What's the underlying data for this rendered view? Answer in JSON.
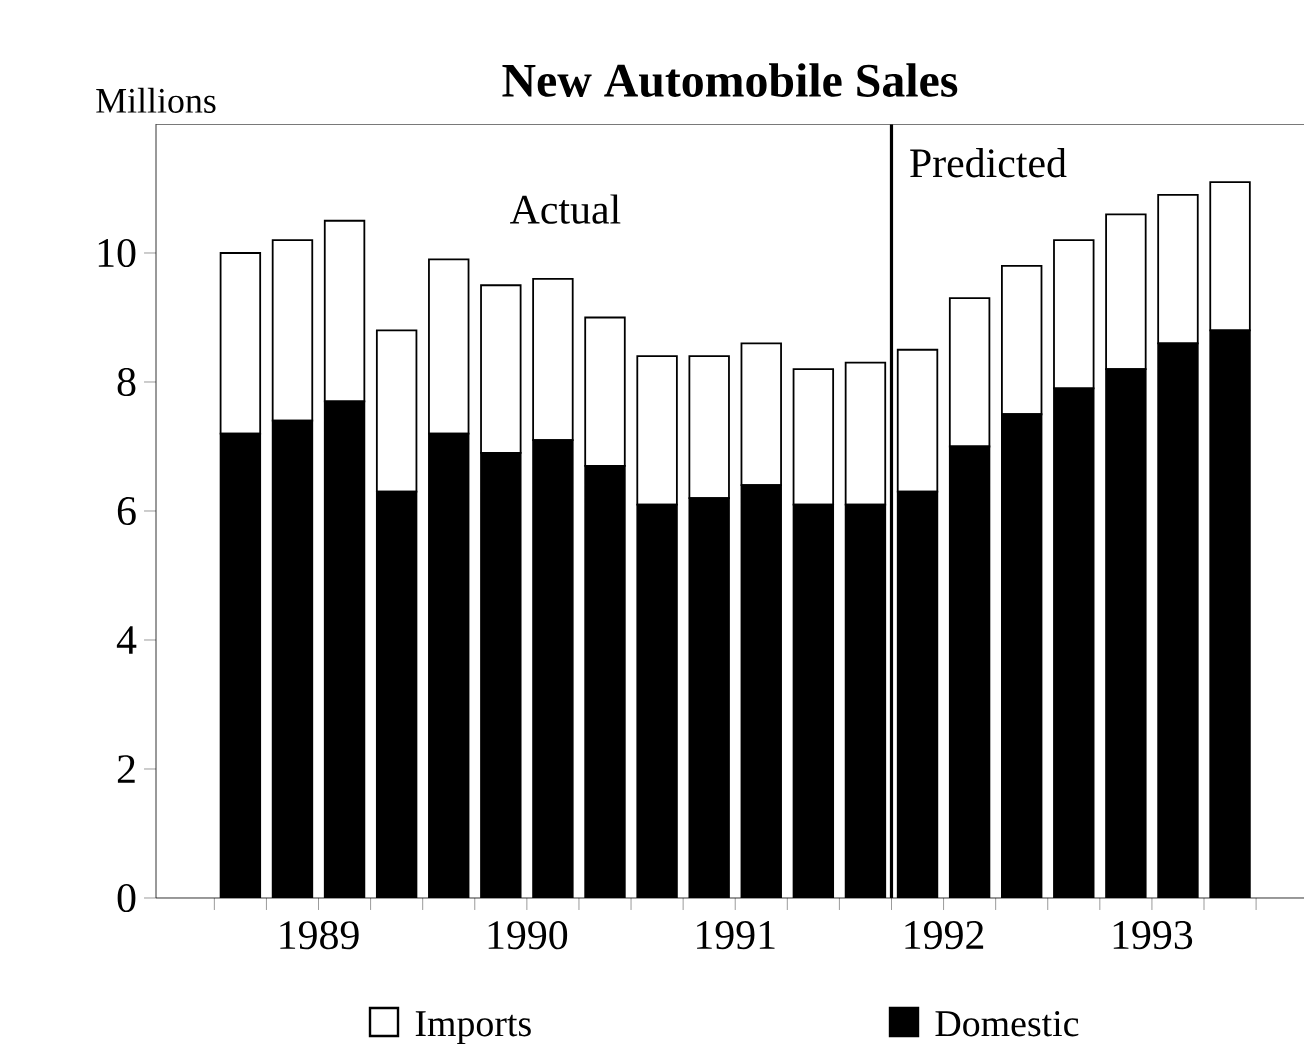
{
  "chart_data": {
    "type": "bar",
    "title": "New Automobile Sales",
    "ylabel": "Millions",
    "stacked": true,
    "x": [
      1989.125,
      1989.375,
      1989.625,
      1989.875,
      1990.125,
      1990.375,
      1990.625,
      1990.875,
      1991.125,
      1991.375,
      1991.625,
      1991.875,
      1992.125,
      1992.375,
      1992.625,
      1992.875,
      1993.125,
      1993.375,
      1993.625,
      1993.875
    ],
    "series": [
      {
        "name": "Domestic",
        "color": "#000000",
        "values": [
          7.2,
          7.4,
          7.7,
          6.3,
          7.2,
          6.9,
          7.1,
          6.7,
          6.1,
          6.2,
          6.4,
          6.1,
          6.1,
          6.3,
          7.0,
          7.5,
          7.9,
          8.2,
          8.6,
          8.8
        ]
      },
      {
        "name": "Imports",
        "color": "#ffffff",
        "values": [
          2.8,
          2.8,
          2.8,
          2.5,
          2.7,
          2.6,
          2.5,
          2.3,
          2.3,
          2.2,
          2.2,
          2.1,
          2.2,
          2.2,
          2.3,
          2.3,
          2.3,
          2.4,
          2.3,
          2.3
        ]
      }
    ],
    "xlim": [
      1988.72,
      1994.23
    ],
    "ylim": [
      0,
      12
    ],
    "xticks": [
      {
        "value": 1989,
        "label": null
      },
      {
        "value": 1989.25,
        "label": null
      },
      {
        "value": 1989.5,
        "label": "1989"
      },
      {
        "value": 1989.75,
        "label": null
      },
      {
        "value": 1990,
        "label": null
      },
      {
        "value": 1990.25,
        "label": null
      },
      {
        "value": 1990.5,
        "label": "1990"
      },
      {
        "value": 1990.75,
        "label": null
      },
      {
        "value": 1991,
        "label": null
      },
      {
        "value": 1991.25,
        "label": null
      },
      {
        "value": 1991.5,
        "label": "1991"
      },
      {
        "value": 1991.75,
        "label": null
      },
      {
        "value": 1992,
        "label": null
      },
      {
        "value": 1992.25,
        "label": null
      },
      {
        "value": 1992.5,
        "label": "1992"
      },
      {
        "value": 1992.75,
        "label": null
      },
      {
        "value": 1993,
        "label": null
      },
      {
        "value": 1993.25,
        "label": null
      },
      {
        "value": 1993.5,
        "label": "1993"
      },
      {
        "value": 1993.75,
        "label": null
      },
      {
        "value": 1994,
        "label": null
      }
    ],
    "yticks": [
      0,
      2,
      4,
      6,
      8,
      10
    ],
    "ref_lines": [
      {
        "axis": "x",
        "value": 1992.25,
        "color": "#000000"
      }
    ],
    "annotations": [
      "Actual",
      "Predicted"
    ],
    "legend": "bottom",
    "grid": false
  }
}
